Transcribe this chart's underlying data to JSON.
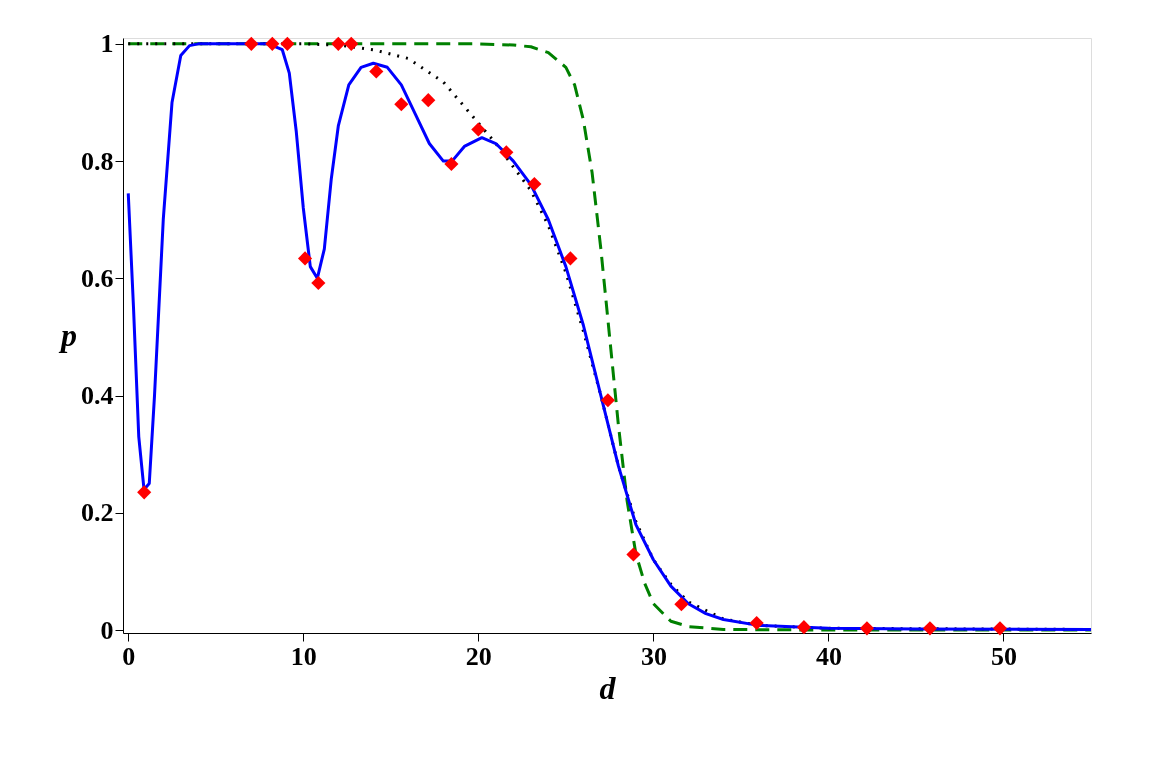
{
  "chart_data": {
    "type": "line",
    "xlabel": "d",
    "ylabel": "p",
    "xlim": [
      -0.3,
      55
    ],
    "ylim": [
      -0.005,
      1.01
    ],
    "xticks": [
      0,
      10,
      20,
      30,
      40,
      50
    ],
    "yticks": [
      0,
      0.2,
      0.4,
      0.6,
      0.8,
      1
    ],
    "series": [
      {
        "color": "#008000",
        "line_style": "dashed",
        "x": [
          0,
          10,
          20,
          22,
          23,
          24,
          25,
          25.5,
          26,
          26.5,
          27,
          27.5,
          28,
          28.5,
          29,
          29.5,
          30,
          31,
          32,
          34,
          40,
          55
        ],
        "values": [
          1,
          1,
          1,
          0.998,
          0.995,
          0.985,
          0.96,
          0.93,
          0.87,
          0.78,
          0.65,
          0.5,
          0.35,
          0.22,
          0.13,
          0.08,
          0.045,
          0.015,
          0.006,
          0.001,
          0,
          0
        ]
      },
      {
        "color": "#000000",
        "line_style": "dotted",
        "x": [
          0,
          10,
          12,
          14,
          16,
          18,
          20,
          21,
          22,
          23,
          24,
          25,
          26,
          27,
          28,
          29,
          30,
          31,
          32,
          34,
          36,
          40,
          55
        ],
        "values": [
          1,
          1,
          0.998,
          0.99,
          0.975,
          0.935,
          0.865,
          0.83,
          0.79,
          0.75,
          0.69,
          0.61,
          0.51,
          0.4,
          0.28,
          0.185,
          0.12,
          0.078,
          0.048,
          0.019,
          0.008,
          0.003,
          0.001
        ]
      },
      {
        "color": "#0000ff",
        "line_style": "solid",
        "x": [
          0,
          0.3,
          0.6,
          0.9,
          1.2,
          1.5,
          2,
          2.5,
          3,
          3.5,
          4,
          8,
          8.8,
          9.2,
          9.6,
          10,
          10.4,
          10.8,
          11.2,
          11.6,
          12,
          12.6,
          13.3,
          14,
          14.8,
          15.6,
          16.4,
          17.2,
          18,
          18.5,
          19.2,
          20.2,
          21,
          22,
          23,
          24,
          25,
          26,
          27,
          28,
          29,
          30,
          31,
          32,
          33,
          34,
          36,
          40,
          45,
          55
        ],
        "values": [
          0.745,
          0.55,
          0.33,
          0.24,
          0.25,
          0.4,
          0.7,
          0.9,
          0.98,
          0.997,
          1,
          1,
          0.99,
          0.95,
          0.85,
          0.72,
          0.62,
          0.6,
          0.65,
          0.77,
          0.86,
          0.93,
          0.96,
          0.967,
          0.96,
          0.93,
          0.88,
          0.83,
          0.8,
          0.8,
          0.825,
          0.84,
          0.83,
          0.8,
          0.76,
          0.7,
          0.62,
          0.52,
          0.4,
          0.28,
          0.18,
          0.12,
          0.075,
          0.045,
          0.028,
          0.018,
          0.008,
          0.003,
          0.002,
          0.001
        ]
      },
      {
        "type": "scatter",
        "color": "#ff0000",
        "marker": "diamond",
        "x": [
          0.91,
          7.03,
          8.23,
          9.09,
          10.1,
          10.86,
          12.0,
          12.74,
          14.17,
          15.6,
          17.14,
          18.46,
          20.0,
          21.6,
          23.2,
          25.26,
          27.4,
          28.86,
          31.6,
          35.9,
          38.6,
          42.2,
          45.8,
          49.8
        ],
        "values": [
          0.235,
          1,
          1,
          1,
          0.634,
          0.592,
          1,
          1,
          0.953,
          0.897,
          0.904,
          0.795,
          0.854,
          0.815,
          0.761,
          0.634,
          0.392,
          0.129,
          0.044,
          0.012,
          0.005,
          0.003,
          0.003,
          0.003
        ]
      }
    ]
  }
}
